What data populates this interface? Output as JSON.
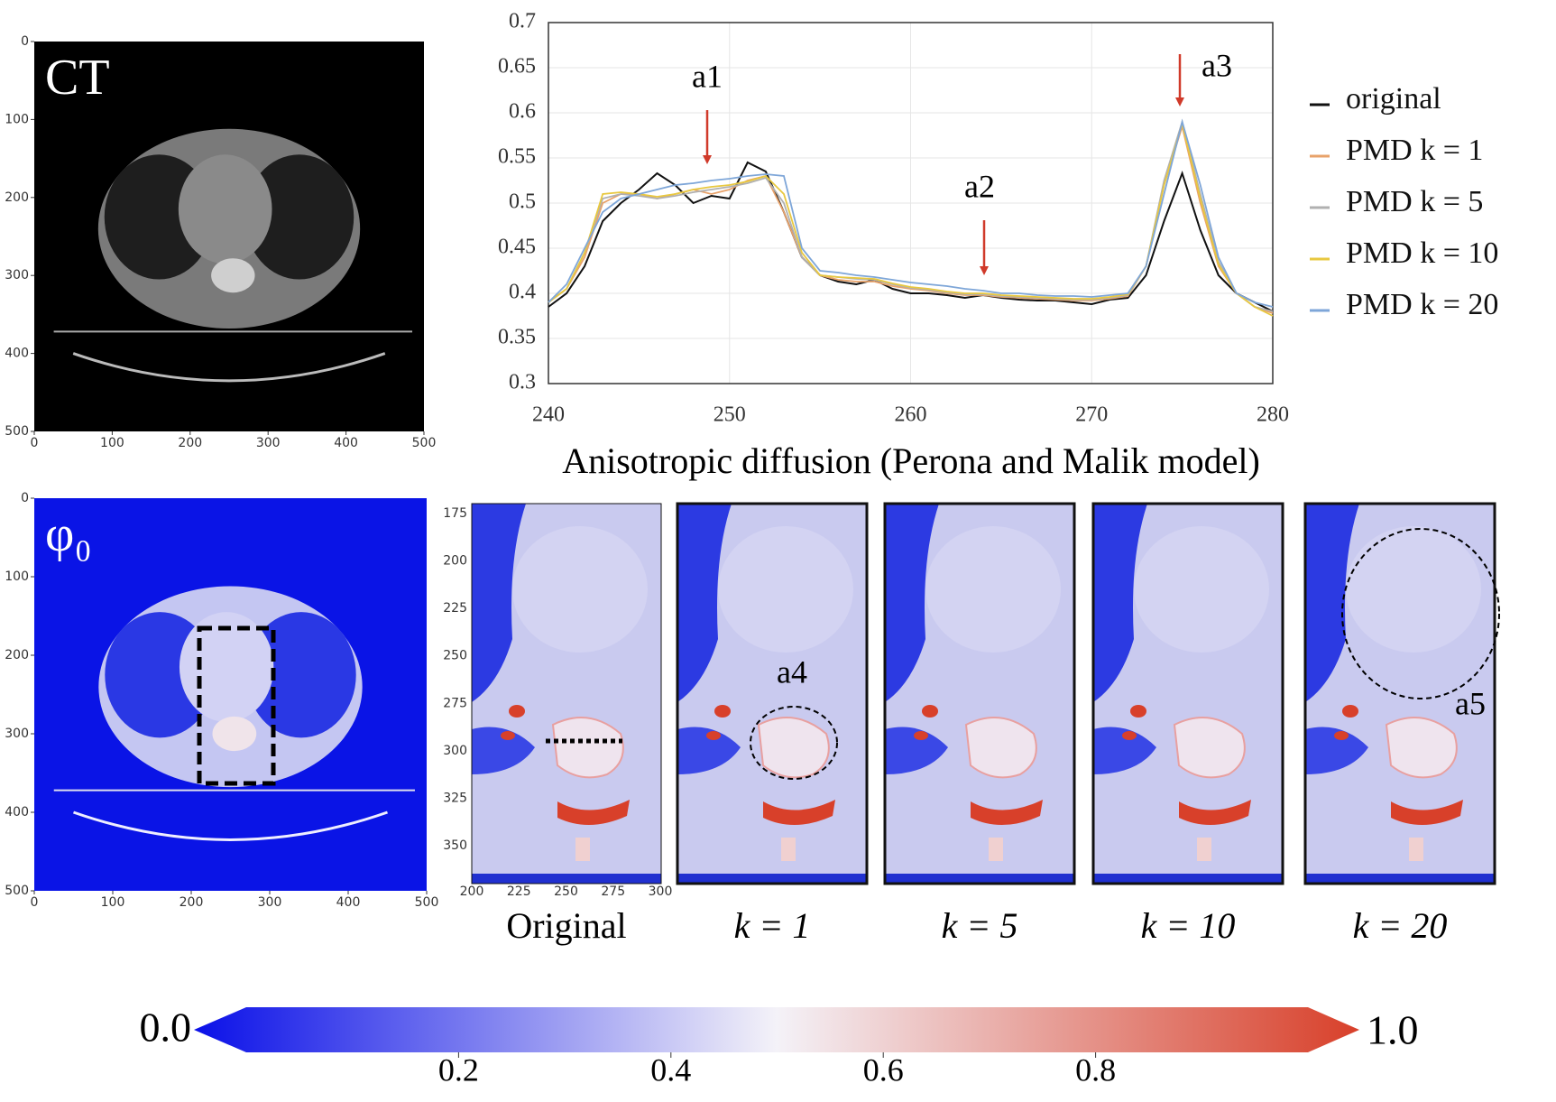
{
  "ct_panel": {
    "label": "CT",
    "xticks": [
      0,
      100,
      200,
      300,
      400,
      500
    ],
    "yticks": [
      0,
      100,
      200,
      300,
      400,
      500
    ]
  },
  "phi_panel": {
    "label": "φ₀",
    "xticks": [
      0,
      100,
      200,
      300,
      400,
      500
    ],
    "yticks": [
      0,
      100,
      200,
      300,
      400,
      500
    ]
  },
  "chart_data": [
    {
      "type": "line",
      "x": [
        240,
        241,
        242,
        243,
        244,
        245,
        246,
        247,
        248,
        249,
        250,
        251,
        252,
        253,
        254,
        255,
        256,
        257,
        258,
        259,
        260,
        261,
        262,
        263,
        264,
        265,
        266,
        267,
        268,
        269,
        270,
        271,
        272,
        273,
        274,
        275,
        276,
        277,
        278,
        279,
        280
      ],
      "xlim": [
        240,
        280
      ],
      "ylim": [
        0.3,
        0.7
      ],
      "xticks": [
        240,
        250,
        260,
        270,
        280
      ],
      "yticks": [
        0.3,
        0.35,
        0.4,
        0.45,
        0.5,
        0.55,
        0.6,
        0.65,
        0.7
      ],
      "grid": true,
      "legend": "right",
      "annotations": [
        "a1",
        "a2",
        "a3"
      ],
      "series": [
        {
          "name": "original",
          "color": "#111111",
          "values": [
            0.385,
            0.4,
            0.43,
            0.48,
            0.5,
            0.515,
            0.533,
            0.52,
            0.5,
            0.508,
            0.505,
            0.545,
            0.535,
            0.49,
            0.44,
            0.42,
            0.413,
            0.41,
            0.415,
            0.405,
            0.4,
            0.4,
            0.398,
            0.395,
            0.398,
            0.395,
            0.393,
            0.392,
            0.392,
            0.39,
            0.388,
            0.393,
            0.395,
            0.42,
            0.48,
            0.533,
            0.47,
            0.42,
            0.4,
            0.39,
            0.38
          ]
        },
        {
          "name": "PMD k = 1",
          "color": "#e8a26a",
          "values": [
            0.39,
            0.405,
            0.44,
            0.5,
            0.51,
            0.51,
            0.505,
            0.51,
            0.515,
            0.51,
            0.515,
            0.525,
            0.53,
            0.49,
            0.44,
            0.42,
            0.415,
            0.413,
            0.413,
            0.408,
            0.405,
            0.403,
            0.4,
            0.398,
            0.398,
            0.396,
            0.395,
            0.394,
            0.393,
            0.392,
            0.392,
            0.394,
            0.397,
            0.43,
            0.52,
            0.585,
            0.5,
            0.43,
            0.4,
            0.385,
            0.378
          ]
        },
        {
          "name": "PMD k = 5",
          "color": "#b0b0b0",
          "values": [
            0.39,
            0.405,
            0.445,
            0.505,
            0.51,
            0.508,
            0.505,
            0.508,
            0.512,
            0.515,
            0.518,
            0.522,
            0.528,
            0.5,
            0.44,
            0.42,
            0.418,
            0.416,
            0.415,
            0.41,
            0.406,
            0.404,
            0.401,
            0.399,
            0.399,
            0.397,
            0.396,
            0.395,
            0.394,
            0.393,
            0.393,
            0.395,
            0.398,
            0.43,
            0.525,
            0.59,
            0.51,
            0.435,
            0.4,
            0.385,
            0.38
          ]
        },
        {
          "name": "PMD k = 10",
          "color": "#e8c840",
          "values": [
            0.39,
            0.405,
            0.445,
            0.51,
            0.512,
            0.51,
            0.507,
            0.51,
            0.515,
            0.518,
            0.52,
            0.524,
            0.53,
            0.51,
            0.445,
            0.42,
            0.418,
            0.417,
            0.416,
            0.411,
            0.407,
            0.405,
            0.402,
            0.4,
            0.4,
            0.398,
            0.397,
            0.396,
            0.395,
            0.394,
            0.394,
            0.396,
            0.399,
            0.43,
            0.52,
            0.588,
            0.505,
            0.432,
            0.4,
            0.385,
            0.375
          ]
        },
        {
          "name": "PMD k = 20",
          "color": "#7ea6d8",
          "values": [
            0.39,
            0.41,
            0.45,
            0.49,
            0.505,
            0.51,
            0.515,
            0.52,
            0.522,
            0.525,
            0.527,
            0.53,
            0.532,
            0.53,
            0.45,
            0.425,
            0.423,
            0.42,
            0.418,
            0.415,
            0.412,
            0.41,
            0.408,
            0.405,
            0.403,
            0.4,
            0.4,
            0.398,
            0.397,
            0.397,
            0.396,
            0.398,
            0.4,
            0.43,
            0.51,
            0.59,
            0.52,
            0.44,
            0.4,
            0.39,
            0.385
          ]
        }
      ]
    },
    {
      "type": "colorbar",
      "xlim": [
        0,
        1
      ],
      "xticks": [
        {
          "value": 0,
          "label": "0.0"
        },
        0.2,
        0.4,
        0.6,
        0.8,
        {
          "value": 1,
          "label": "1.0"
        }
      ],
      "colors": [
        "#0a10e8",
        "#f4f2f8",
        "#d8402a"
      ]
    }
  ],
  "diffusion": {
    "title": "Anisotropic diffusion (Perona and Malik model)",
    "xticks": [
      200,
      225,
      250,
      275,
      300
    ],
    "yticks": [
      175,
      200,
      225,
      250,
      275,
      300,
      325,
      350
    ],
    "panels": [
      "Original",
      "k = 1",
      "k = 5",
      "k = 10",
      "k = 20"
    ],
    "annotations": [
      "a4",
      "a5"
    ]
  }
}
